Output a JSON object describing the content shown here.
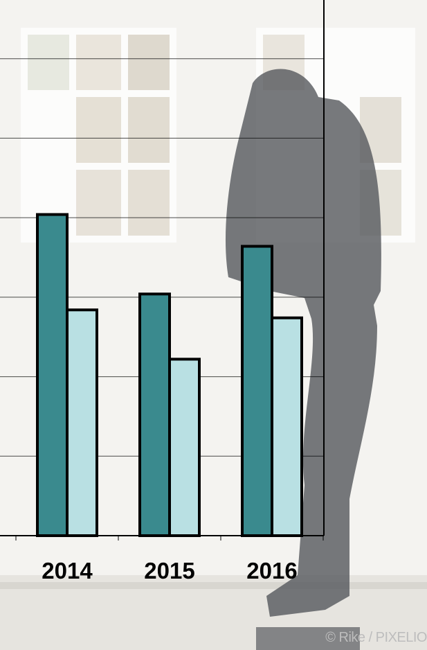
{
  "colors": {
    "primary": "#3a8a8e",
    "secondary": "#b9e0e3",
    "stroke": "#000000",
    "grid": "#000000"
  },
  "chart_data": {
    "type": "bar",
    "categories": [
      "2014",
      "2015",
      "2016"
    ],
    "series": [
      {
        "values": [
          20.2,
          15.2,
          18.2
        ]
      },
      {
        "values": [
          14.2,
          11.1,
          13.7
        ]
      }
    ],
    "ylim": [
      0,
      35
    ],
    "grid": true,
    "legend": "none"
  },
  "photo_credit": "© Rike / PIXELIO"
}
